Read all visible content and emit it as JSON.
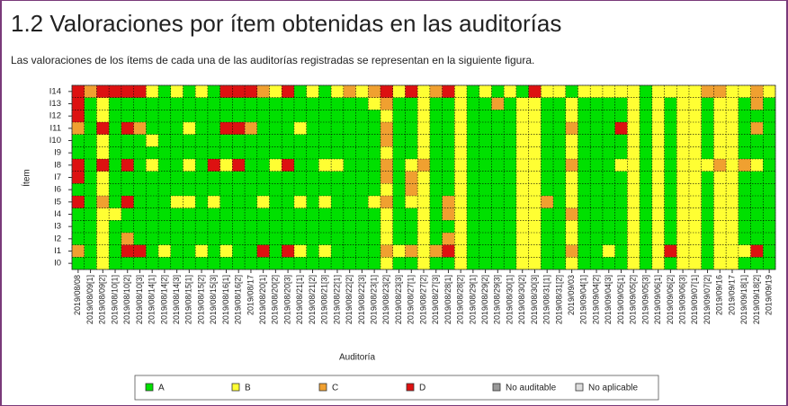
{
  "chart_data": {
    "type": "heatmap",
    "title": "1.2 Valoraciones por ítem obtenidas en las auditorías",
    "subtitle": "Las valoraciones de los ítems de cada una de las auditorías registradas se representan en la siguiente figura.",
    "xlabel": "Auditoría",
    "ylabel": "Ítem",
    "grid": true,
    "rows": [
      "I14",
      "I13",
      "I12",
      "I11",
      "I10",
      "I9",
      "I8",
      "I7",
      "I6",
      "I5",
      "I4",
      "I3",
      "I2",
      "I1",
      "I0"
    ],
    "categories": [
      "2019/08/08",
      "2019/08/09[1]",
      "2019/08/09[2]",
      "2019/08/10[1]",
      "2019/08/10[2]",
      "2019/08/10[3]",
      "2019/08/14[1]",
      "2019/08/14[2]",
      "2019/08/14[3]",
      "2019/08/15[1]",
      "2019/08/15[2]",
      "2019/08/15[3]",
      "2019/08/16[1]",
      "2019/08/16[2]",
      "2019/08/17",
      "2019/08/20[1]",
      "2019/08/20[2]",
      "2019/08/20[3]",
      "2019/08/21[1]",
      "2019/08/21[2]",
      "2019/08/21[3]",
      "2019/08/22[1]",
      "2019/08/22[2]",
      "2019/08/22[3]",
      "2019/08/23[1]",
      "2019/08/23[2]",
      "2019/08/23[3]",
      "2019/08/27[1]",
      "2019/08/27[2]",
      "2019/08/27[3]",
      "2019/08/28[1]",
      "2019/08/28[2]",
      "2019/08/29[1]",
      "2019/08/29[2]",
      "2019/08/29[3]",
      "2019/08/30[1]",
      "2019/08/30[2]",
      "2019/08/30[3]",
      "2019/08/31[1]",
      "2019/08/31[2]",
      "2019/09/03",
      "2019/09/04[1]",
      "2019/09/04[2]",
      "2019/09/04[3]",
      "2019/09/05[1]",
      "2019/09/05[2]",
      "2019/09/05[3]",
      "2019/09/06[1]",
      "2019/09/06[2]",
      "2019/09/06[3]",
      "2019/09/07[1]",
      "2019/09/07[2]",
      "2019/09/16",
      "2019/09/17",
      "2019/09/18[1]",
      "2019/09/18[2]",
      "2019/09/19"
    ],
    "series": [
      {
        "name": "A",
        "color": "#00e000"
      },
      {
        "name": "B",
        "color": "#ffff33"
      },
      {
        "name": "C",
        "color": "#f0a030"
      },
      {
        "name": "D",
        "color": "#dd1111"
      },
      {
        "name": "No auditable",
        "color": "#999999"
      },
      {
        "name": "No aplicable",
        "color": "#dddddd"
      }
    ],
    "values": [
      [
        "D",
        "C",
        "D",
        "D",
        "D",
        "D",
        "B",
        "A",
        "B",
        "A",
        "B",
        "A",
        "D",
        "D",
        "D",
        "C",
        "B",
        "D",
        "A",
        "B",
        "A",
        "B",
        "C",
        "B",
        "C",
        "D",
        "B",
        "D",
        "B",
        "C",
        "D",
        "B",
        "A",
        "B",
        "A",
        "B",
        "A",
        "D",
        "B",
        "B",
        "A",
        "B",
        "B",
        "B",
        "B",
        "B",
        "A",
        "B",
        "B",
        "B",
        "B",
        "C",
        "C",
        "B",
        "B",
        "C",
        "B"
      ],
      [
        "D",
        "A",
        "B",
        "A",
        "A",
        "A",
        "A",
        "A",
        "A",
        "A",
        "A",
        "A",
        "A",
        "A",
        "A",
        "A",
        "A",
        "A",
        "A",
        "A",
        "A",
        "A",
        "A",
        "A",
        "B",
        "C",
        "A",
        "A",
        "B",
        "A",
        "A",
        "B",
        "A",
        "A",
        "C",
        "A",
        "B",
        "B",
        "A",
        "A",
        "B",
        "A",
        "A",
        "A",
        "A",
        "B",
        "A",
        "B",
        "A",
        "B",
        "B",
        "A",
        "B",
        "B",
        "A",
        "C",
        "A"
      ],
      [
        "D",
        "A",
        "B",
        "A",
        "A",
        "A",
        "A",
        "A",
        "A",
        "A",
        "A",
        "A",
        "A",
        "A",
        "A",
        "A",
        "A",
        "A",
        "A",
        "A",
        "A",
        "A",
        "A",
        "A",
        "A",
        "B",
        "A",
        "A",
        "B",
        "A",
        "A",
        "B",
        "A",
        "A",
        "A",
        "A",
        "B",
        "B",
        "A",
        "A",
        "B",
        "A",
        "A",
        "A",
        "A",
        "B",
        "A",
        "B",
        "A",
        "B",
        "B",
        "A",
        "B",
        "B",
        "A",
        "A",
        "A"
      ],
      [
        "C",
        "A",
        "D",
        "A",
        "D",
        "C",
        "A",
        "A",
        "A",
        "B",
        "A",
        "A",
        "D",
        "D",
        "C",
        "A",
        "A",
        "A",
        "B",
        "A",
        "A",
        "A",
        "A",
        "A",
        "A",
        "C",
        "A",
        "A",
        "B",
        "A",
        "A",
        "B",
        "A",
        "A",
        "A",
        "A",
        "B",
        "B",
        "A",
        "A",
        "C",
        "A",
        "A",
        "A",
        "D",
        "B",
        "A",
        "B",
        "A",
        "B",
        "B",
        "A",
        "B",
        "B",
        "A",
        "C",
        "A"
      ],
      [
        "A",
        "A",
        "B",
        "A",
        "A",
        "A",
        "B",
        "A",
        "A",
        "A",
        "A",
        "A",
        "A",
        "A",
        "A",
        "A",
        "A",
        "A",
        "A",
        "A",
        "A",
        "A",
        "A",
        "A",
        "A",
        "C",
        "A",
        "A",
        "B",
        "A",
        "A",
        "B",
        "A",
        "A",
        "A",
        "A",
        "B",
        "B",
        "A",
        "A",
        "B",
        "A",
        "A",
        "A",
        "A",
        "B",
        "A",
        "B",
        "A",
        "B",
        "B",
        "A",
        "B",
        "B",
        "A",
        "A",
        "A"
      ],
      [
        "A",
        "A",
        "B",
        "A",
        "A",
        "A",
        "A",
        "A",
        "A",
        "A",
        "A",
        "A",
        "A",
        "A",
        "A",
        "A",
        "A",
        "A",
        "A",
        "A",
        "A",
        "A",
        "A",
        "A",
        "A",
        "B",
        "A",
        "A",
        "B",
        "A",
        "A",
        "B",
        "A",
        "A",
        "A",
        "A",
        "B",
        "B",
        "A",
        "A",
        "B",
        "A",
        "A",
        "A",
        "A",
        "B",
        "A",
        "B",
        "A",
        "B",
        "B",
        "A",
        "B",
        "B",
        "A",
        "A",
        "A"
      ],
      [
        "D",
        "A",
        "D",
        "A",
        "D",
        "A",
        "B",
        "A",
        "A",
        "B",
        "A",
        "D",
        "B",
        "D",
        "A",
        "A",
        "B",
        "D",
        "A",
        "A",
        "B",
        "B",
        "A",
        "A",
        "A",
        "C",
        "A",
        "B",
        "C",
        "A",
        "A",
        "B",
        "A",
        "A",
        "A",
        "A",
        "B",
        "B",
        "A",
        "A",
        "C",
        "A",
        "A",
        "A",
        "B",
        "B",
        "A",
        "B",
        "A",
        "B",
        "B",
        "B",
        "C",
        "B",
        "C",
        "B",
        "A"
      ],
      [
        "D",
        "A",
        "B",
        "A",
        "A",
        "A",
        "A",
        "A",
        "A",
        "A",
        "A",
        "A",
        "A",
        "A",
        "A",
        "A",
        "A",
        "A",
        "A",
        "A",
        "A",
        "A",
        "A",
        "A",
        "A",
        "C",
        "A",
        "C",
        "B",
        "A",
        "A",
        "B",
        "A",
        "A",
        "A",
        "A",
        "B",
        "B",
        "A",
        "A",
        "B",
        "A",
        "A",
        "A",
        "A",
        "B",
        "A",
        "B",
        "A",
        "B",
        "B",
        "A",
        "B",
        "B",
        "A",
        "A",
        "A"
      ],
      [
        "A",
        "A",
        "B",
        "A",
        "A",
        "A",
        "A",
        "A",
        "A",
        "A",
        "A",
        "A",
        "A",
        "A",
        "A",
        "A",
        "A",
        "A",
        "A",
        "A",
        "A",
        "A",
        "A",
        "A",
        "A",
        "B",
        "A",
        "C",
        "B",
        "A",
        "A",
        "B",
        "A",
        "A",
        "A",
        "A",
        "B",
        "B",
        "A",
        "A",
        "B",
        "A",
        "A",
        "A",
        "A",
        "B",
        "A",
        "B",
        "A",
        "B",
        "B",
        "A",
        "B",
        "B",
        "A",
        "A",
        "A"
      ],
      [
        "D",
        "A",
        "C",
        "A",
        "D",
        "A",
        "A",
        "A",
        "B",
        "B",
        "A",
        "B",
        "A",
        "A",
        "A",
        "B",
        "A",
        "A",
        "B",
        "A",
        "B",
        "A",
        "A",
        "A",
        "B",
        "C",
        "A",
        "B",
        "B",
        "A",
        "C",
        "B",
        "A",
        "A",
        "A",
        "A",
        "B",
        "B",
        "C",
        "A",
        "B",
        "A",
        "A",
        "A",
        "A",
        "B",
        "A",
        "B",
        "A",
        "B",
        "B",
        "A",
        "B",
        "B",
        "A",
        "A",
        "A"
      ],
      [
        "A",
        "A",
        "B",
        "B",
        "A",
        "A",
        "A",
        "A",
        "A",
        "A",
        "A",
        "A",
        "A",
        "A",
        "A",
        "A",
        "A",
        "A",
        "A",
        "A",
        "A",
        "A",
        "A",
        "A",
        "A",
        "B",
        "A",
        "A",
        "B",
        "A",
        "C",
        "B",
        "A",
        "A",
        "A",
        "A",
        "B",
        "B",
        "A",
        "A",
        "C",
        "A",
        "A",
        "A",
        "A",
        "B",
        "A",
        "B",
        "A",
        "B",
        "B",
        "A",
        "B",
        "B",
        "A",
        "A",
        "A"
      ],
      [
        "A",
        "A",
        "B",
        "A",
        "A",
        "A",
        "A",
        "A",
        "A",
        "A",
        "A",
        "A",
        "A",
        "A",
        "A",
        "A",
        "A",
        "A",
        "A",
        "A",
        "A",
        "A",
        "A",
        "A",
        "A",
        "B",
        "A",
        "A",
        "B",
        "A",
        "A",
        "B",
        "A",
        "A",
        "A",
        "A",
        "B",
        "B",
        "A",
        "A",
        "B",
        "A",
        "A",
        "A",
        "A",
        "B",
        "A",
        "B",
        "A",
        "B",
        "B",
        "A",
        "B",
        "B",
        "A",
        "A",
        "A"
      ],
      [
        "A",
        "A",
        "B",
        "A",
        "C",
        "A",
        "A",
        "A",
        "A",
        "A",
        "A",
        "A",
        "A",
        "A",
        "A",
        "A",
        "A",
        "A",
        "A",
        "A",
        "A",
        "A",
        "A",
        "A",
        "A",
        "B",
        "A",
        "A",
        "B",
        "A",
        "C",
        "B",
        "A",
        "A",
        "A",
        "A",
        "B",
        "B",
        "A",
        "A",
        "B",
        "A",
        "A",
        "A",
        "A",
        "B",
        "A",
        "B",
        "A",
        "B",
        "B",
        "A",
        "B",
        "B",
        "A",
        "A",
        "A"
      ],
      [
        "C",
        "A",
        "B",
        "A",
        "D",
        "D",
        "A",
        "B",
        "A",
        "A",
        "B",
        "A",
        "B",
        "A",
        "A",
        "D",
        "A",
        "D",
        "B",
        "A",
        "B",
        "A",
        "A",
        "A",
        "A",
        "C",
        "B",
        "C",
        "B",
        "C",
        "D",
        "B",
        "A",
        "A",
        "A",
        "A",
        "B",
        "B",
        "A",
        "A",
        "C",
        "A",
        "A",
        "B",
        "A",
        "B",
        "A",
        "B",
        "D",
        "B",
        "B",
        "A",
        "B",
        "B",
        "B",
        "D",
        "A"
      ],
      [
        "A",
        "A",
        "B",
        "A",
        "A",
        "A",
        "A",
        "A",
        "A",
        "A",
        "A",
        "A",
        "A",
        "A",
        "A",
        "A",
        "A",
        "A",
        "A",
        "A",
        "A",
        "A",
        "A",
        "A",
        "A",
        "B",
        "A",
        "A",
        "B",
        "A",
        "A",
        "B",
        "A",
        "A",
        "A",
        "A",
        "B",
        "B",
        "A",
        "A",
        "B",
        "A",
        "A",
        "A",
        "A",
        "B",
        "A",
        "B",
        "A",
        "B",
        "B",
        "A",
        "B",
        "B",
        "A",
        "A",
        "A"
      ]
    ]
  }
}
